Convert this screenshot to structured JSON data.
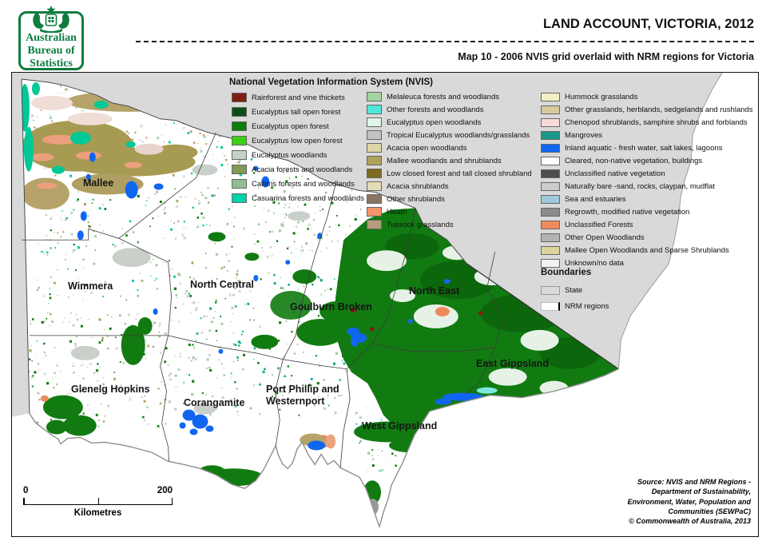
{
  "header": {
    "logo_line1": "Australian",
    "logo_line2": "Bureau of",
    "logo_line3": "Statistics",
    "title": "LAND ACCOUNT, VICTORIA, 2012",
    "subtitle": "Map 10 - 2006 NVIS grid overlaid with NRM regions for Victoria"
  },
  "colors": {
    "abs_green": "#0e7c3f",
    "outside_state_grey": "#d9d9d9",
    "forest_green": "#117b11",
    "water_blue": "#1166f0",
    "mallee_khaki": "#a79a52"
  },
  "legend": {
    "title": "National Vegetation Information System (NVIS)",
    "columns": [
      [
        {
          "label": "Rainforest and vine thickets",
          "color": "#7e1e10"
        },
        {
          "label": "Eucalyptus tall open forest",
          "color": "#0c4f16"
        },
        {
          "label": "Eucalyptus open forest",
          "color": "#0b7d0b"
        },
        {
          "label": "Eucalyptus low open forest",
          "color": "#3ccf13"
        },
        {
          "label": "Eucalyptus woodlands",
          "color": "#c4d3c6"
        },
        {
          "label": "Acacia forests and woodlands",
          "color": "#7f9b55"
        },
        {
          "label": "Callitris forests and woodlands",
          "color": "#92be8e"
        },
        {
          "label": "Casuarina forests and woodlands",
          "color": "#00d3a7"
        }
      ],
      [
        {
          "label": "Melaleuca forests and woodlands",
          "color": "#a2d3a2"
        },
        {
          "label": "Other forests and woodlands",
          "color": "#4fe8d8"
        },
        {
          "label": "Eucalyptus open woodlands",
          "color": "#dff7e9"
        },
        {
          "label": "Tropical Eucalyptus woodlands/grasslands",
          "color": "#c2c2c2"
        },
        {
          "label": "Acacia open woodlands",
          "color": "#dfd6a8"
        },
        {
          "label": "Mallee woodlands and shrublands",
          "color": "#afa25a"
        },
        {
          "label": "Low closed forest and tall closed shrubland",
          "color": "#7c6b20"
        },
        {
          "label": "Acacia shrublands",
          "color": "#e3dbb5"
        },
        {
          "label": "Other shrublands",
          "color": "#8b7361"
        },
        {
          "label": "Heath",
          "color": "#f4956b"
        },
        {
          "label": "Tussock grasslands",
          "color": "#b59e7e"
        }
      ],
      [
        {
          "label": "Hummock grasslands",
          "color": "#f2efc5"
        },
        {
          "label": "Other grasslands, herblands, sedgelands and rushlands",
          "color": "#d8c99f"
        },
        {
          "label": "Chenopod shrublands, samphire shrubs and forblands",
          "color": "#f6dcd7"
        },
        {
          "label": "Mangroves",
          "color": "#19988b"
        },
        {
          "label": "Inland aquatic - fresh water, salt lakes, lagoons",
          "color": "#1166f0"
        },
        {
          "label": "Cleared, non-native vegetation, buildings",
          "color": "#ffffff"
        },
        {
          "label": "Unclassified native vegetation",
          "color": "#4d4d4d"
        },
        {
          "label": "Naturally bare -sand, rocks, claypan, mudflat",
          "color": "#cccccc"
        },
        {
          "label": "Sea and estuaries",
          "color": "#9fc8dd"
        },
        {
          "label": "Regrowth, modified native vegetation",
          "color": "#8c8c8c"
        },
        {
          "label": "Unclassified Forests",
          "color": "#ef8a5c"
        },
        {
          "label": "Other Open Woodlands",
          "color": "#b3b3b3"
        },
        {
          "label": "Mallee Open Woodlands and Sparse Shrublands",
          "color": "#dbd49c"
        },
        {
          "label": "Unknown/no data",
          "color": "#f2f2f0"
        }
      ]
    ],
    "boundaries": {
      "title": "Boundaries",
      "items": [
        {
          "label": "State",
          "color": "#d9d9d9",
          "edge": false
        },
        {
          "label": "NRM regions",
          "color": "#ffffff",
          "edge": true
        }
      ]
    }
  },
  "map": {
    "regions": [
      {
        "id": "mallee",
        "label": "Mallee"
      },
      {
        "id": "wimmera",
        "label": "Wimmera"
      },
      {
        "id": "north-central",
        "label": "North Central"
      },
      {
        "id": "goulburn-broken",
        "label": "Goulburn Broken"
      },
      {
        "id": "north-east",
        "label": "North East"
      },
      {
        "id": "east-gippsland",
        "label": "East Gippsland"
      },
      {
        "id": "glenelg-hopkins",
        "label": "Glenelg Hopkins"
      },
      {
        "id": "corangamite",
        "label": "Corangamite"
      },
      {
        "id": "port-phillip-westernport",
        "label": "Port Phillip and\nWesternport"
      },
      {
        "id": "west-gippsland",
        "label": "West Gippsland"
      }
    ],
    "scalebar": {
      "zero": "0",
      "max": "200",
      "unit": "Kilometres"
    },
    "source_lines": [
      "Source: NVIS and NRM Regions -",
      "Department of Sustainability,",
      "Environment, Water, Population and",
      "Communities (SEWPaC)",
      "© Commonwealth of Australia, 2013"
    ]
  }
}
